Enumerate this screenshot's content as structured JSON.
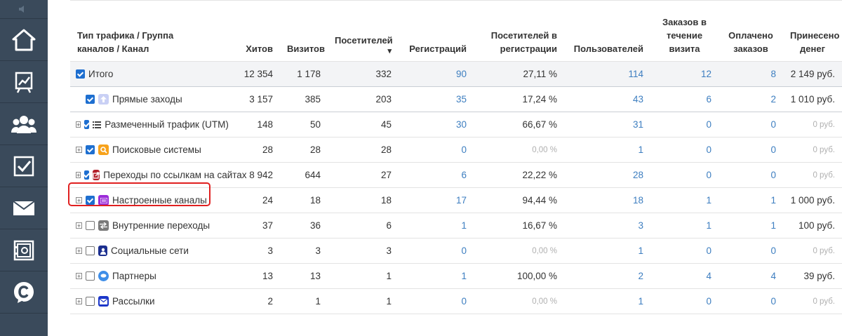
{
  "columns": [
    "Тип трафика / Группа каналов / Канал",
    "Хитов",
    "Визитов",
    "Посетителей",
    "Регистраций",
    "Посетителей в регистрации",
    "Пользователей",
    "Заказов в течение визита",
    "Оплачено заказов",
    "Принесено денег"
  ],
  "sort_indicator": "▾",
  "rows": [
    {
      "name": "Итого",
      "hits": "12 354",
      "visits": "1 178",
      "visitors": "332",
      "registrations": "90",
      "reg_rate": "27,11 %",
      "users": "114",
      "orders": "12",
      "paid": "8",
      "money": "2 149 руб."
    },
    {
      "name": "Прямые заходы",
      "hits": "3 157",
      "visits": "385",
      "visitors": "203",
      "registrations": "35",
      "reg_rate": "17,24 %",
      "users": "43",
      "orders": "6",
      "paid": "2",
      "money": "1 010 руб."
    },
    {
      "name": "Размеченный трафик (UTM)",
      "hits": "148",
      "visits": "50",
      "visitors": "45",
      "registrations": "30",
      "reg_rate": "66,67 %",
      "users": "31",
      "orders": "0",
      "paid": "0",
      "money": "0 руб."
    },
    {
      "name": "Поисковые системы",
      "hits": "28",
      "visits": "28",
      "visitors": "28",
      "registrations": "0",
      "reg_rate": "0,00 %",
      "users": "1",
      "orders": "0",
      "paid": "0",
      "money": "0 руб."
    },
    {
      "name": "Переходы по ссылкам на сайтах",
      "hits": "8 942",
      "visits": "644",
      "visitors": "27",
      "registrations": "6",
      "reg_rate": "22,22 %",
      "users": "28",
      "orders": "0",
      "paid": "0",
      "money": "0 руб."
    },
    {
      "name": "Настроенные каналы",
      "hits": "24",
      "visits": "18",
      "visitors": "18",
      "registrations": "17",
      "reg_rate": "94,44 %",
      "users": "18",
      "orders": "1",
      "paid": "1",
      "money": "1 000 руб."
    },
    {
      "name": "Внутренние переходы",
      "hits": "37",
      "visits": "36",
      "visitors": "6",
      "registrations": "1",
      "reg_rate": "16,67 %",
      "users": "3",
      "orders": "1",
      "paid": "1",
      "money": "100 руб."
    },
    {
      "name": "Социальные сети",
      "hits": "3",
      "visits": "3",
      "visitors": "3",
      "registrations": "0",
      "reg_rate": "0,00 %",
      "users": "1",
      "orders": "0",
      "paid": "0",
      "money": "0 руб."
    },
    {
      "name": "Партнеры",
      "hits": "13",
      "visits": "13",
      "visitors": "1",
      "registrations": "1",
      "reg_rate": "100,00 %",
      "users": "2",
      "orders": "4",
      "paid": "4",
      "money": "39 руб."
    },
    {
      "name": "Рассылки",
      "hits": "2",
      "visits": "1",
      "visitors": "1",
      "registrations": "0",
      "reg_rate": "0,00 %",
      "users": "1",
      "orders": "0",
      "paid": "0",
      "money": "0 руб."
    }
  ],
  "colors": {
    "sidebar": "#3a4a5b",
    "link": "#3d7ec0",
    "highlight": "#e02020",
    "checkbox": "#1e6fd0"
  }
}
